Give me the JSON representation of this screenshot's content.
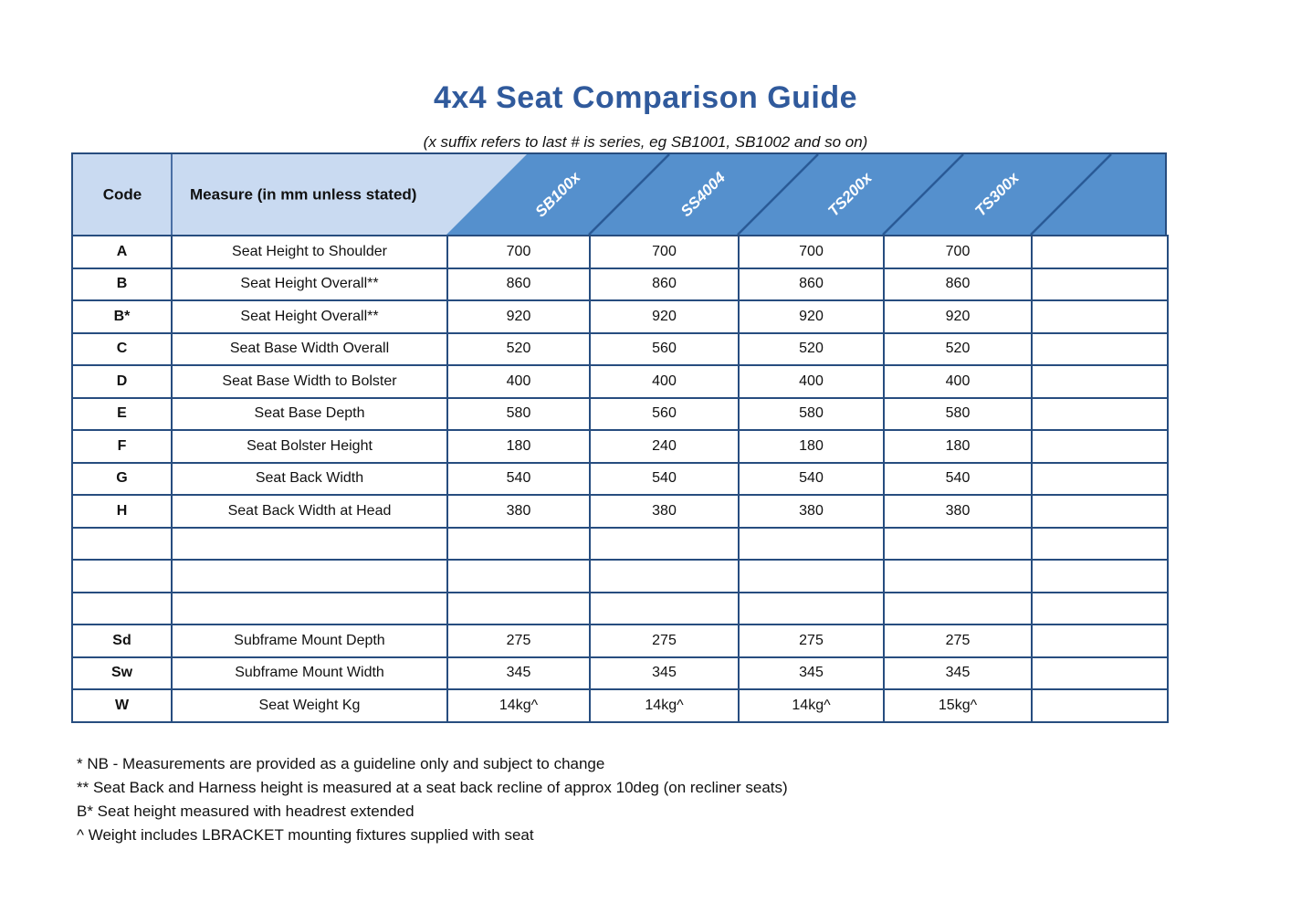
{
  "title": "4x4 Seat Comparison Guide",
  "subtitle": "(x suffix refers to last # is series, eg SB1001, SB1002 and so on)",
  "colors": {
    "title_blue": "#305a9c",
    "header_light_blue": "#c9daf1",
    "header_dark_blue": "#5590cd",
    "grid_border": "#274d7f",
    "diagonal_line": "#2a5a96"
  },
  "table": {
    "code_header": "Code",
    "measure_header": "Measure (in mm unless stated)",
    "product_columns": [
      "SB100x",
      "SS4004",
      "TS200x",
      "TS300x"
    ],
    "rows": [
      {
        "code": "A",
        "measure": "Seat Height to Shoulder",
        "values": [
          "700",
          "700",
          "700",
          "700",
          ""
        ]
      },
      {
        "code": "B",
        "measure": "Seat Height Overall**",
        "values": [
          "860",
          "860",
          "860",
          "860",
          ""
        ]
      },
      {
        "code": "B*",
        "measure": "Seat Height Overall**",
        "values": [
          "920",
          "920",
          "920",
          "920",
          ""
        ]
      },
      {
        "code": "C",
        "measure": "Seat Base Width Overall",
        "values": [
          "520",
          "560",
          "520",
          "520",
          ""
        ]
      },
      {
        "code": "D",
        "measure": "Seat Base Width to Bolster",
        "values": [
          "400",
          "400",
          "400",
          "400",
          ""
        ]
      },
      {
        "code": "E",
        "measure": "Seat Base Depth",
        "values": [
          "580",
          "560",
          "580",
          "580",
          ""
        ]
      },
      {
        "code": "F",
        "measure": "Seat Bolster Height",
        "values": [
          "180",
          "240",
          "180",
          "180",
          ""
        ]
      },
      {
        "code": "G",
        "measure": "Seat Back Width",
        "values": [
          "540",
          "540",
          "540",
          "540",
          ""
        ]
      },
      {
        "code": "H",
        "measure": "Seat Back Width at Head",
        "values": [
          "380",
          "380",
          "380",
          "380",
          ""
        ]
      },
      {
        "code": "",
        "measure": "",
        "values": [
          "",
          "",
          "",
          "",
          ""
        ]
      },
      {
        "code": "",
        "measure": "",
        "values": [
          "",
          "",
          "",
          "",
          ""
        ]
      },
      {
        "code": "",
        "measure": "",
        "values": [
          "",
          "",
          "",
          "",
          ""
        ]
      },
      {
        "code": "Sd",
        "measure": "Subframe Mount Depth",
        "values": [
          "275",
          "275",
          "275",
          "275",
          ""
        ]
      },
      {
        "code": "Sw",
        "measure": "Subframe Mount Width",
        "values": [
          "345",
          "345",
          "345",
          "345",
          ""
        ]
      },
      {
        "code": "W",
        "measure": "Seat Weight Kg",
        "values": [
          "14kg^",
          "14kg^",
          "14kg^",
          "15kg^",
          ""
        ]
      }
    ]
  },
  "footnotes": [
    "* NB - Measurements are provided as a guideline only and subject to change",
    "** Seat Back and Harness height is measured at a seat back recline of approx 10deg (on recliner seats)",
    "B* Seat height measured with headrest extended",
    "^ Weight includes LBRACKET mounting fixtures supplied with seat"
  ]
}
